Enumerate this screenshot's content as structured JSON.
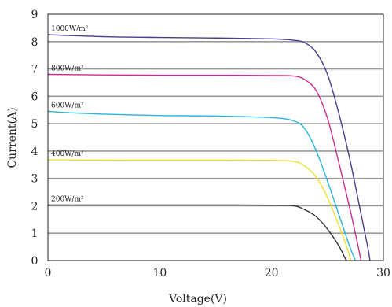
{
  "chart_data": {
    "type": "line",
    "title": "",
    "xlabel": "Voltage(V)",
    "ylabel": "Current(A)",
    "xlim": [
      0,
      30
    ],
    "ylim": [
      0,
      9
    ],
    "xticks": [
      0,
      10,
      20,
      30
    ],
    "yticks": [
      0,
      1,
      2,
      3,
      4,
      5,
      6,
      7,
      8,
      9
    ],
    "grid": "horizontal",
    "series": [
      {
        "name": "1000W/m²",
        "color": "#4a3d8f",
        "points": [
          [
            0,
            8.25
          ],
          [
            5,
            8.18
          ],
          [
            10,
            8.15
          ],
          [
            15,
            8.13
          ],
          [
            20,
            8.1
          ],
          [
            22,
            8.05
          ],
          [
            23,
            7.95
          ],
          [
            24,
            7.6
          ],
          [
            25,
            6.8
          ],
          [
            26,
            5.4
          ],
          [
            27,
            3.7
          ],
          [
            28,
            1.7
          ],
          [
            28.6,
            0.5
          ],
          [
            28.8,
            0
          ]
        ]
      },
      {
        "name": "800W/m²",
        "color": "#cc2d8f",
        "points": [
          [
            0,
            6.8
          ],
          [
            5,
            6.78
          ],
          [
            10,
            6.77
          ],
          [
            15,
            6.77
          ],
          [
            20,
            6.76
          ],
          [
            22,
            6.74
          ],
          [
            23,
            6.6
          ],
          [
            24,
            6.2
          ],
          [
            25,
            5.2
          ],
          [
            26,
            3.6
          ],
          [
            27,
            1.9
          ],
          [
            27.7,
            0.6
          ],
          [
            28.0,
            0
          ]
        ]
      },
      {
        "name": "600W/m²",
        "color": "#2ab3e0",
        "points": [
          [
            0,
            5.45
          ],
          [
            2,
            5.4
          ],
          [
            5,
            5.35
          ],
          [
            10,
            5.3
          ],
          [
            15,
            5.28
          ],
          [
            20,
            5.22
          ],
          [
            22,
            5.1
          ],
          [
            23,
            4.8
          ],
          [
            24,
            4.0
          ],
          [
            25,
            2.9
          ],
          [
            26,
            1.7
          ],
          [
            27,
            0.5
          ],
          [
            27.5,
            0
          ]
        ]
      },
      {
        "name": "400W/m²",
        "color": "#f0e030",
        "points": [
          [
            0,
            3.68
          ],
          [
            5,
            3.67
          ],
          [
            10,
            3.67
          ],
          [
            15,
            3.67
          ],
          [
            20,
            3.66
          ],
          [
            22,
            3.62
          ],
          [
            23,
            3.45
          ],
          [
            24,
            3.05
          ],
          [
            25,
            2.3
          ],
          [
            26,
            1.3
          ],
          [
            26.8,
            0.4
          ],
          [
            27.1,
            0
          ]
        ]
      },
      {
        "name": "200W/m²",
        "color": "#333333",
        "points": [
          [
            0,
            2.03
          ],
          [
            5,
            2.03
          ],
          [
            10,
            2.03
          ],
          [
            15,
            2.03
          ],
          [
            20,
            2.02
          ],
          [
            22,
            2.0
          ],
          [
            23,
            1.85
          ],
          [
            24,
            1.6
          ],
          [
            25,
            1.15
          ],
          [
            26,
            0.55
          ],
          [
            26.5,
            0.15
          ],
          [
            26.7,
            0
          ]
        ]
      }
    ]
  }
}
